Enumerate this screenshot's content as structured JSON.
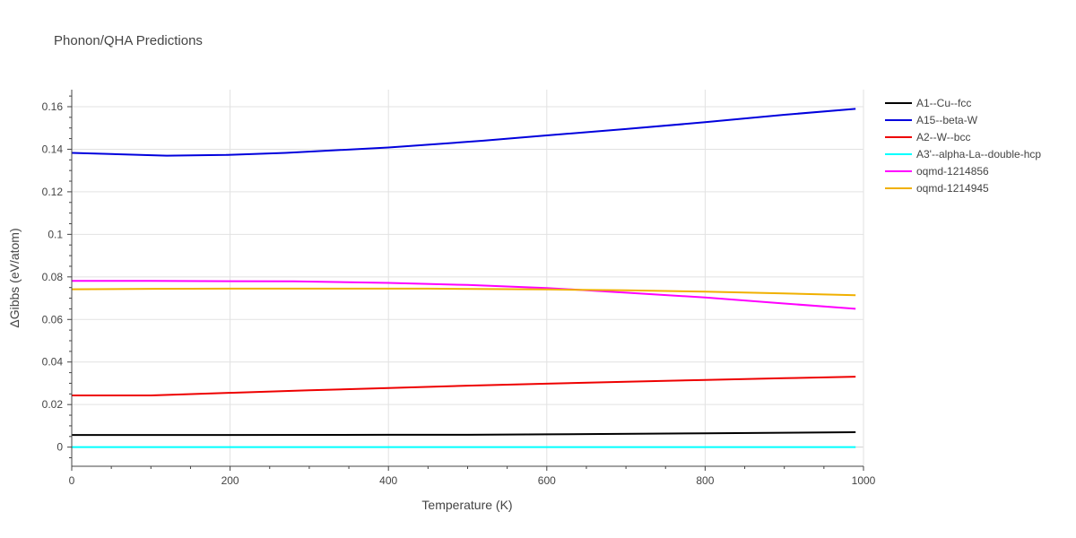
{
  "chart_data": {
    "type": "line",
    "title": "Phonon/QHA Predictions",
    "xlabel": "Temperature (K)",
    "ylabel": "ΔGibbs (eV/atom)",
    "xlim": [
      0,
      1000
    ],
    "ylim": [
      -0.009,
      0.168
    ],
    "xticks": [
      0,
      200,
      400,
      600,
      800,
      1000
    ],
    "yticks": [
      0,
      0.02,
      0.04,
      0.06,
      0.08,
      0.1,
      0.12,
      0.14,
      0.16
    ],
    "ytick_labels": [
      "0",
      "0.02",
      "0.04",
      "0.06",
      "0.08",
      "0.1",
      "0.12",
      "0.14",
      "0.16"
    ],
    "grid": true,
    "legend_position": "right",
    "series": [
      {
        "name": "A1--Cu--fcc",
        "color": "#000000",
        "x": [
          0,
          200,
          400,
          500,
          600,
          800,
          990
        ],
        "y": [
          0.0057,
          0.0057,
          0.0058,
          0.0058,
          0.006,
          0.0065,
          0.007
        ]
      },
      {
        "name": "A15--beta-W",
        "color": "#0000dd",
        "x": [
          0,
          120,
          195,
          270,
          400,
          520,
          600,
          700,
          800,
          900,
          990
        ],
        "y": [
          0.1383,
          0.137,
          0.1373,
          0.1383,
          0.1408,
          0.144,
          0.1465,
          0.1495,
          0.1527,
          0.1562,
          0.159
        ]
      },
      {
        "name": "A2--W--bcc",
        "color": "#ee0000",
        "x": [
          0,
          100,
          200,
          300,
          400,
          500,
          600,
          700,
          800,
          900,
          990
        ],
        "y": [
          0.0243,
          0.0243,
          0.0255,
          0.0267,
          0.0278,
          0.0289,
          0.0298,
          0.0307,
          0.0316,
          0.0324,
          0.0331
        ]
      },
      {
        "name": "A3'--alpha-La--double-hcp",
        "color": "#00ffff",
        "x": [
          0,
          990
        ],
        "y": [
          0.0,
          0.0
        ]
      },
      {
        "name": "oqmd-1214856",
        "color": "#ff00ff",
        "x": [
          0,
          100,
          200,
          280,
          400,
          500,
          600,
          700,
          800,
          900,
          990
        ],
        "y": [
          0.0781,
          0.0781,
          0.078,
          0.0779,
          0.0772,
          0.0762,
          0.0748,
          0.0726,
          0.0703,
          0.0675,
          0.065
        ]
      },
      {
        "name": "oqmd-1214945",
        "color": "#f0b000",
        "x": [
          0,
          100,
          200,
          300,
          450,
          600,
          700,
          800,
          900,
          990
        ],
        "y": [
          0.0742,
          0.0744,
          0.0745,
          0.0745,
          0.0745,
          0.0741,
          0.0737,
          0.0731,
          0.0722,
          0.0714
        ]
      }
    ]
  }
}
